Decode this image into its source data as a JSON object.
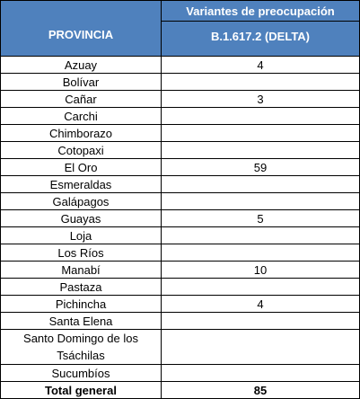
{
  "table": {
    "header_province": "PROVINCIA",
    "header_variant_line1": "Variantes de preocupación",
    "header_variant_line2": "B.1.617.2 (DELTA)",
    "rows": [
      {
        "province": "Azuay",
        "value": "4"
      },
      {
        "province": "Bolívar",
        "value": ""
      },
      {
        "province": "Cañar",
        "value": "3"
      },
      {
        "province": "Carchi",
        "value": ""
      },
      {
        "province": "Chimborazo",
        "value": ""
      },
      {
        "province": "Cotopaxi",
        "value": ""
      },
      {
        "province": "El Oro",
        "value": "59"
      },
      {
        "province": "Esmeraldas",
        "value": ""
      },
      {
        "province": "Galápagos",
        "value": ""
      },
      {
        "province": "Guayas",
        "value": "5"
      },
      {
        "province": "Loja",
        "value": ""
      },
      {
        "province": "Los Ríos",
        "value": ""
      },
      {
        "province": "Manabí",
        "value": "10"
      },
      {
        "province": "Pastaza",
        "value": ""
      },
      {
        "province": "Pichincha",
        "value": "4"
      },
      {
        "province": "Santa Elena",
        "value": ""
      },
      {
        "province": "Santo Domingo de los Tsáchilas",
        "value": ""
      },
      {
        "province": "Sucumbíos",
        "value": ""
      }
    ],
    "total_label": "Total general",
    "total_value": "85"
  },
  "colors": {
    "header_bg": "#4f81bd",
    "header_text": "#ffffff",
    "grid": "#000000"
  }
}
